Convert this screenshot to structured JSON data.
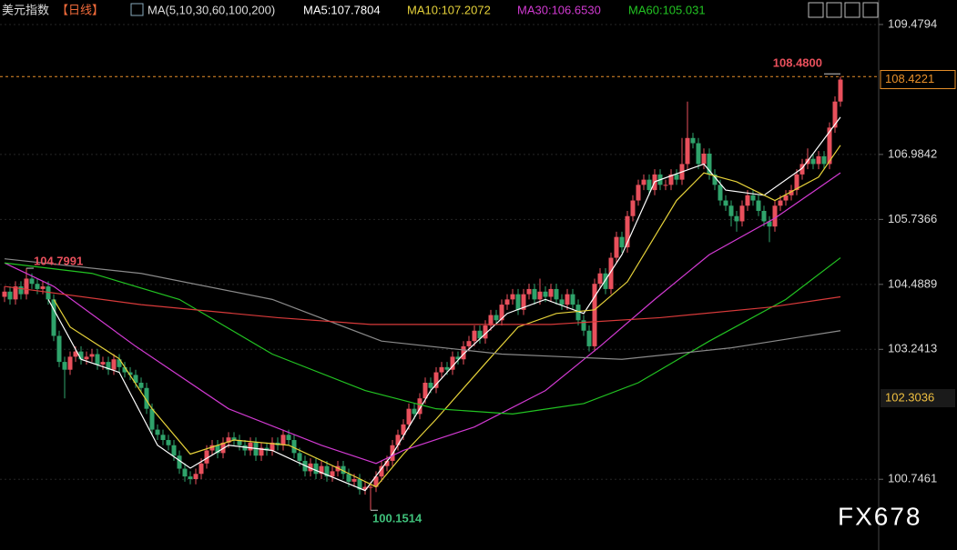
{
  "chart_data": {
    "type": "candlestick",
    "title": "美元指数",
    "period": "【日线】",
    "ma_label": "MA(5,10,30,60,100,200)",
    "watermark": "FX678",
    "up_color": "#e8505c",
    "down_color": "#2fa36b",
    "ylim": [
      99.65,
      109.95
    ],
    "yticks": [
      100.7461,
      103.2413,
      104.4889,
      105.7366,
      106.9842,
      109.4794
    ],
    "grid": true,
    "marker_price": 102.3036,
    "high_label": {
      "value": 108.48,
      "label": "108.4800"
    },
    "low_label": 100.1514,
    "left_high_label": 104.7991,
    "open": [
      104.25,
      104.35,
      104.2,
      104.45,
      104.3,
      104.6,
      104.5,
      104.4,
      104.45,
      104.2,
      103.5,
      103,
      102.85,
      103.1,
      103.2,
      103.05,
      103.1,
      103.15,
      102.95,
      103,
      102.85,
      103.05,
      102.9,
      102.8,
      102.75,
      102.6,
      102.5,
      102.1,
      101.7,
      101.6,
      101.5,
      101.4,
      101.2,
      100.95,
      100.8,
      100.75,
      100.85,
      101.05,
      101.3,
      101.4,
      101.25,
      101.45,
      101.55,
      101.5,
      101.4,
      101.3,
      101.45,
      101.2,
      101.35,
      101.3,
      101.45,
      101.4,
      101.6,
      101.5,
      101.25,
      101.1,
      100.9,
      101.05,
      100.85,
      101,
      100.8,
      100.9,
      101,
      100.85,
      100.7,
      100.75,
      100.55,
      100.6,
      100.6,
      100.8,
      101,
      101.1,
      101.4,
      101.6,
      101.8,
      102.1,
      102,
      102.3,
      102.6,
      102.5,
      102.8,
      102.9,
      102.85,
      103.1,
      103.05,
      103.3,
      103.4,
      103.6,
      103.45,
      103.7,
      103.9,
      103.8,
      104.1,
      104.2,
      104.3,
      104,
      104.3,
      104.4,
      104.2,
      104.35,
      104.25,
      104.4,
      104.2,
      104.1,
      104.3,
      104.1,
      103.8,
      103.6,
      103.3,
      104.5,
      104.7,
      104.4,
      105,
      105.4,
      105.2,
      105.8,
      106.1,
      106.4,
      106.5,
      106.3,
      106.6,
      106.4,
      106.4,
      106.6,
      106.5,
      106.8,
      107.3,
      107.2,
      106.8,
      107,
      106.6,
      106.4,
      106.1,
      106,
      105.8,
      105.7,
      106,
      106.2,
      106.1,
      105.9,
      105.7,
      105.6,
      106,
      106.1,
      106.2,
      106.3,
      106.6,
      106.8,
      106.9,
      106.8,
      106.95,
      106.8,
      107.5,
      108
    ],
    "high": [
      104.45,
      104.45,
      104.55,
      104.55,
      104.7991,
      104.7,
      104.6,
      104.55,
      104.55,
      104.3,
      103.6,
      103.1,
      103.2,
      103.3,
      103.3,
      103.2,
      103.25,
      103.25,
      103.1,
      103.1,
      103.15,
      103.15,
      103,
      102.9,
      102.85,
      102.7,
      102.6,
      102.2,
      101.8,
      101.7,
      101.6,
      101.5,
      101.3,
      101.05,
      100.9,
      100.95,
      101.15,
      101.4,
      101.5,
      101.5,
      101.55,
      101.65,
      101.65,
      101.6,
      101.5,
      101.55,
      101.55,
      101.45,
      101.45,
      101.55,
      101.55,
      101.7,
      101.7,
      101.6,
      101.35,
      101.2,
      101.15,
      101.15,
      101.1,
      101.1,
      101,
      101.1,
      101.1,
      100.95,
      100.85,
      100.85,
      100.7,
      100.7,
      100.9,
      101.1,
      101.2,
      101.5,
      101.7,
      101.9,
      102.2,
      102.2,
      102.4,
      102.7,
      102.7,
      102.9,
      103,
      103,
      103.2,
      103.2,
      103.4,
      103.5,
      103.7,
      103.7,
      103.8,
      104,
      104,
      104.2,
      104.3,
      104.4,
      104.4,
      104.4,
      104.5,
      104.5,
      104.6,
      104.45,
      104.5,
      104.5,
      104.3,
      104.4,
      104.4,
      104.2,
      103.9,
      103.7,
      104.6,
      104.8,
      104.8,
      105.1,
      105.5,
      105.5,
      105.9,
      106.2,
      106.5,
      106.6,
      106.6,
      106.7,
      106.7,
      106.5,
      106.7,
      106.7,
      107.3,
      108,
      107.4,
      107.3,
      107.1,
      107.1,
      106.7,
      106.5,
      106.2,
      106.1,
      105.9,
      106.1,
      106.3,
      106.3,
      106.2,
      106,
      105.8,
      106.1,
      106.2,
      106.3,
      106.4,
      106.7,
      106.9,
      107.1,
      107,
      107.05,
      107.05,
      107.6,
      108.1,
      108.48
    ],
    "low": [
      104.15,
      104.1,
      104.1,
      104.2,
      104.2,
      104.4,
      104.3,
      104.3,
      104.1,
      103.4,
      102.9,
      102.3,
      102.75,
      103,
      102.95,
      102.95,
      103,
      102.85,
      102.85,
      102.75,
      102.75,
      102.8,
      102.7,
      102.65,
      102.5,
      102.4,
      102,
      101.6,
      101.5,
      101.4,
      101.3,
      101.1,
      100.85,
      100.7,
      100.65,
      100.65,
      100.75,
      100.95,
      101.2,
      101.15,
      101.15,
      101.35,
      101.4,
      101.3,
      101.2,
      101.2,
      101.1,
      101.1,
      101.2,
      101.2,
      101.3,
      101.3,
      101.4,
      101.15,
      101,
      100.8,
      100.8,
      100.75,
      100.75,
      100.7,
      100.7,
      100.8,
      100.75,
      100.6,
      100.6,
      100.45,
      100.45,
      100.1514,
      100.5,
      100.7,
      100.9,
      101,
      101.3,
      101.5,
      101.7,
      101.9,
      101.9,
      102.2,
      102.4,
      102.4,
      102.7,
      102.75,
      102.75,
      102.95,
      102.95,
      103.2,
      103.3,
      103.35,
      103.35,
      103.6,
      103.7,
      103.7,
      104,
      104.1,
      103.9,
      103.9,
      104.2,
      104.1,
      104.1,
      104.15,
      104.15,
      104.1,
      104,
      104,
      104,
      103.7,
      103.5,
      103.2,
      103.2,
      104.4,
      104.3,
      104.3,
      104.9,
      105.1,
      105.1,
      105.7,
      106,
      106.3,
      106.2,
      106.2,
      106.3,
      106.3,
      106.3,
      106.4,
      106.4,
      106.7,
      107.1,
      106.7,
      106.7,
      106.5,
      106.3,
      106,
      105.9,
      105.6,
      105.5,
      105.6,
      105.9,
      106,
      105.8,
      105.6,
      105.3,
      105.5,
      105.9,
      106,
      106.1,
      106.2,
      106.5,
      106.7,
      106.7,
      106.7,
      106.7,
      106.7,
      107.4,
      107.9
    ],
    "close": [
      104.35,
      104.2,
      104.45,
      104.3,
      104.6,
      104.5,
      104.4,
      104.45,
      104.2,
      103.5,
      103,
      102.85,
      103.1,
      103.2,
      103.05,
      103.1,
      103.15,
      102.95,
      103,
      102.85,
      103.05,
      102.9,
      102.8,
      102.75,
      102.6,
      102.5,
      102.1,
      101.7,
      101.6,
      101.5,
      101.4,
      101.2,
      100.95,
      100.8,
      100.75,
      100.85,
      101.05,
      101.3,
      101.4,
      101.25,
      101.45,
      101.55,
      101.5,
      101.4,
      101.3,
      101.45,
      101.2,
      101.35,
      101.3,
      101.45,
      101.4,
      101.6,
      101.5,
      101.25,
      101.1,
      100.9,
      101.05,
      100.85,
      101,
      100.8,
      100.9,
      101,
      100.85,
      100.7,
      100.75,
      100.55,
      100.6,
      100.6,
      100.8,
      101,
      101.1,
      101.4,
      101.6,
      101.8,
      102.1,
      102,
      102.3,
      102.6,
      102.5,
      102.8,
      102.9,
      102.85,
      103.1,
      103.05,
      103.3,
      103.4,
      103.6,
      103.45,
      103.7,
      103.9,
      103.8,
      104.1,
      104.2,
      104.3,
      104,
      104.3,
      104.4,
      104.2,
      104.35,
      104.25,
      104.4,
      104.2,
      104.1,
      104.3,
      104.1,
      103.8,
      103.6,
      103.3,
      104.5,
      104.7,
      104.4,
      105,
      105.4,
      105.2,
      105.8,
      106.1,
      106.4,
      106.5,
      106.3,
      106.6,
      106.4,
      106.4,
      106.6,
      106.5,
      106.8,
      107.3,
      107.2,
      106.8,
      107,
      106.6,
      106.4,
      106.1,
      106,
      105.8,
      105.7,
      106,
      106.2,
      106.1,
      105.9,
      105.7,
      105.6,
      106,
      106.1,
      106.2,
      106.3,
      106.6,
      106.8,
      106.9,
      106.8,
      106.95,
      106.8,
      107.5,
      108,
      108.4221
    ],
    "series": [
      {
        "name": "MA5:107.7804",
        "color": "#ffffff",
        "x": [
          8,
          14,
          21,
          28,
          34,
          41,
          49,
          56,
          66,
          71,
          78,
          84,
          92,
          99,
          106,
          113,
          119,
          128,
          132,
          139,
          146,
          153
        ],
        "values": [
          104.2,
          103.05,
          102.8,
          101.4,
          100.96,
          101.4,
          101.3,
          100.96,
          100.53,
          101.23,
          102.45,
          103.15,
          103.93,
          104.2,
          103.93,
          105.06,
          106.46,
          106.8,
          106.3,
          106.2,
          106.72,
          107.7
        ]
      },
      {
        "name": "MA10:107.2072",
        "color": "#e6d23a",
        "x": [
          9,
          12,
          21,
          27,
          34,
          42,
          52,
          61,
          68,
          73,
          79,
          88,
          94,
          101,
          108,
          114,
          123,
          128,
          134,
          141,
          149,
          153
        ],
        "values": [
          104.2,
          103.67,
          103.06,
          102.1,
          101.23,
          101.5,
          101.4,
          100.96,
          100.6,
          101.23,
          101.9,
          102.97,
          103.67,
          103.93,
          104,
          104.54,
          106.1,
          106.63,
          106.46,
          106.1,
          106.55,
          107.16
        ]
      },
      {
        "name": "MA30:106.6530",
        "color": "#d23ad2",
        "x": [
          0,
          9,
          24,
          41,
          58,
          68,
          73,
          86,
          99,
          109,
          119,
          129,
          141,
          153
        ],
        "values": [
          104.9,
          104.45,
          103.3,
          102.1,
          101.4,
          101.05,
          101.3,
          101.75,
          102.45,
          103.3,
          104.2,
          105.06,
          105.76,
          106.63
        ]
      },
      {
        "name": "MA60:105.031",
        "color": "#22c322",
        "x": [
          0,
          16,
          32,
          49,
          66,
          79,
          93,
          106,
          116,
          129,
          143,
          153
        ],
        "values": [
          104.9,
          104.7,
          104.2,
          103.15,
          102.45,
          102.1,
          102,
          102.2,
          102.6,
          103.4,
          104.2,
          105
        ]
      },
      {
        "color": "#8a8a8a",
        "x": [
          0,
          25,
          49,
          69,
          91,
          113,
          133,
          153
        ],
        "values": [
          104.98,
          104.7,
          104.2,
          103.4,
          103.15,
          103.05,
          103.27,
          103.6
        ]
      },
      {
        "color": "#d83a3a",
        "x": [
          0,
          25,
          50,
          67,
          100,
          120,
          140,
          153
        ],
        "values": [
          104.45,
          104.1,
          103.85,
          103.72,
          103.72,
          103.85,
          104.05,
          104.25
        ]
      }
    ]
  }
}
